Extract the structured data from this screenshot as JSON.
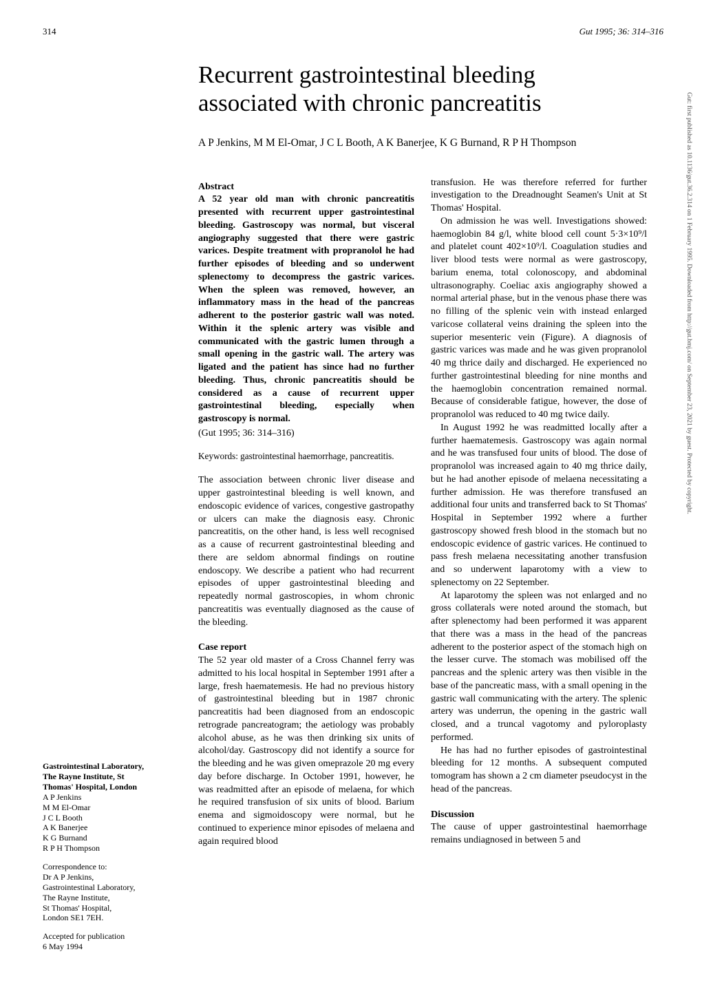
{
  "header": {
    "page_left": "314",
    "journal_ref": "Gut 1995; 36: 314–316"
  },
  "title": "Recurrent gastrointestinal bleeding associated with chronic pancreatitis",
  "authors": "A P Jenkins, M M El-Omar, J C L Booth, A K Banerjee, K G Burnand, R P H Thompson",
  "col1": {
    "abstract_head": "Abstract",
    "abstract_body": "A 52 year old man with chronic pancreatitis presented with recurrent upper gastrointestinal bleeding. Gastroscopy was normal, but visceral angiography suggested that there were gastric varices. Despite treatment with propranolol he had further episodes of bleeding and so underwent splenectomy to decompress the gastric varices. When the spleen was removed, however, an inflammatory mass in the head of the pancreas adherent to the posterior gastric wall was noted. Within it the splenic artery was visible and communicated with the gastric lumen through a small opening in the gastric wall. The artery was ligated and the patient has since had no further bleeding. Thus, chronic pancreatitis should be considered as a cause of recurrent upper gastrointestinal bleeding, especially when gastroscopy is normal.",
    "gutref": "(Gut 1995; 36: 314–316)",
    "keywords": "Keywords: gastrointestinal haemorrhage, pancreatitis.",
    "intro": "The association between chronic liver disease and upper gastrointestinal bleeding is well known, and endoscopic evidence of varices, congestive gastropathy or ulcers can make the diagnosis easy. Chronic pancreatitis, on the other hand, is less well recognised as a cause of recurrent gastrointestinal bleeding and there are seldom abnormal findings on routine endoscopy. We describe a patient who had recurrent episodes of upper gastrointestinal bleeding and repeatedly normal gastroscopies, in whom chronic pancreatitis was eventually diagnosed as the cause of the bleeding.",
    "case_head": "Case report",
    "case_body": "The 52 year old master of a Cross Channel ferry was admitted to his local hospital in September 1991 after a large, fresh haematemesis. He had no previous history of gastrointestinal bleeding but in 1987 chronic pancreatitis had been diagnosed from an endoscopic retrograde pancreatogram; the aetiology was probably alcohol abuse, as he was then drinking six units of alcohol/day. Gastroscopy did not identify a source for the bleeding and he was given omeprazole 20 mg every day before discharge. In October 1991, however, he was readmitted after an episode of melaena, for which he required transfusion of six units of blood. Barium enema and sigmoidoscopy were normal, but he continued to experience minor episodes of melaena and again required blood"
  },
  "col2": {
    "p1": "transfusion. He was therefore referred for further investigation to the Dreadnought Seamen's Unit at St Thomas' Hospital.",
    "p2": "On admission he was well. Investigations showed: haemoglobin 84 g/l, white blood cell count 5·3×10⁹/l and platelet count 402×10⁹/l. Coagulation studies and liver blood tests were normal as were gastroscopy, barium enema, total colonoscopy, and abdominal ultrasonography. Coeliac axis angiography showed a normal arterial phase, but in the venous phase there was no filling of the splenic vein with instead enlarged varicose collateral veins draining the spleen into the superior mesenteric vein (Figure). A diagnosis of gastric varices was made and he was given propranolol 40 mg thrice daily and discharged. He experienced no further gastrointestinal bleeding for nine months and the haemoglobin concentration remained normal. Because of considerable fatigue, however, the dose of propranolol was reduced to 40 mg twice daily.",
    "p3": "In August 1992 he was readmitted locally after a further haematemesis. Gastroscopy was again normal and he was transfused four units of blood. The dose of propranolol was increased again to 40 mg thrice daily, but he had another episode of melaena necessitating a further admission. He was therefore transfused an additional four units and transferred back to St Thomas' Hospital in September 1992 where a further gastroscopy showed fresh blood in the stomach but no endoscopic evidence of gastric varices. He continued to pass fresh melaena necessitating another transfusion and so underwent laparotomy with a view to splenectomy on 22 September.",
    "p4": "At laparotomy the spleen was not enlarged and no gross collaterals were noted around the stomach, but after splenectomy had been performed it was apparent that there was a mass in the head of the pancreas adherent to the posterior aspect of the stomach high on the lesser curve. The stomach was mobilised off the pancreas and the splenic artery was then visible in the base of the pancreatic mass, with a small opening in the gastric wall communicating with the artery. The splenic artery was underrun, the opening in the gastric wall closed, and a truncal vagotomy and pyloroplasty performed.",
    "p5": "He has had no further episodes of gastrointestinal bleeding for 12 months. A subsequent computed tomogram has shown a 2 cm diameter pseudocyst in the head of the pancreas.",
    "disc_head": "Discussion",
    "disc_body": "The cause of upper gastrointestinal haemorrhage remains undiagnosed in between 5 and"
  },
  "sidebar": {
    "aff_head": "Gastrointestinal Laboratory, The Rayne Institute, St Thomas' Hospital, London",
    "aff_people": "A P Jenkins\nM M El-Omar\nJ C L Booth\nA K Banerjee\nK G Burnand\nR P H Thompson",
    "corr": "Correspondence to:\nDr A P Jenkins,\nGastrointestinal Laboratory,\nThe Rayne Institute,\nSt Thomas' Hospital,\nLondon SE1 7EH.",
    "acc": "Accepted for publication\n6 May 1994"
  },
  "strip_text": "Gut: first published as 10.1136/gut.36.2.314 on 1 February 1995. Downloaded from http://gut.bmj.com/ on September 23, 2021 by guest. Protected by copyright."
}
